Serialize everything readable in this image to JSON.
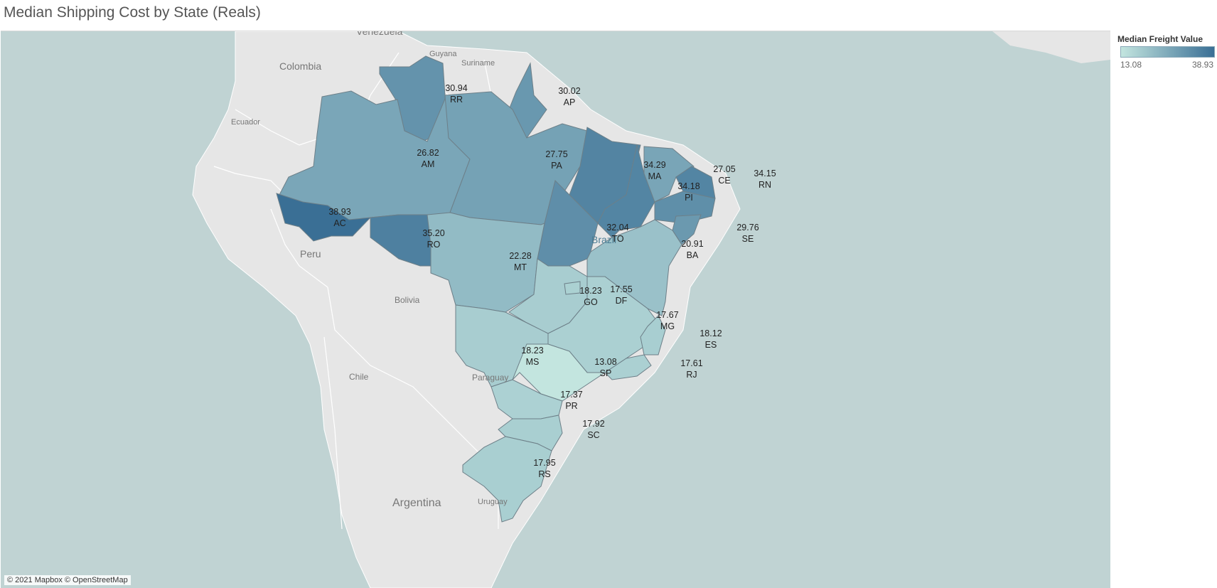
{
  "title": "Median Shipping Cost by State (Reals)",
  "legend": {
    "title": "Median Freight Value",
    "min_label": "13.08",
    "max_label": "38.93",
    "color_min": "#c3e5df",
    "color_max": "#3a6f95"
  },
  "attribution": "© 2021 Mapbox © OpenStreetMap",
  "countries": {
    "venezuela": "Venezuela",
    "guyana": "Guyana",
    "suriname": "Suriname",
    "colombia": "Colombia",
    "ecuador": "Ecuador",
    "peru": "Peru",
    "bolivia": "Bolivia",
    "brazil": "Brazil",
    "chile": "Chile",
    "paraguay": "Paraguay",
    "argentina": "Argentina",
    "uruguay": "Uruguay"
  },
  "chart_data": {
    "type": "choropleth",
    "title": "Median Shipping Cost by State (Reals)",
    "value_label": "Median Freight Value",
    "color_range": [
      13.08,
      38.93
    ],
    "regions": [
      {
        "code": "RR",
        "value": "30.94"
      },
      {
        "code": "AP",
        "value": "30.02"
      },
      {
        "code": "AM",
        "value": "26.82"
      },
      {
        "code": "PA",
        "value": "27.75"
      },
      {
        "code": "MA",
        "value": "34.29"
      },
      {
        "code": "CE",
        "value": "27.05"
      },
      {
        "code": "RN",
        "value": "34.15"
      },
      {
        "code": "PI",
        "value": "34.18"
      },
      {
        "code": "AC",
        "value": "38.93"
      },
      {
        "code": "RO",
        "value": "35.20"
      },
      {
        "code": "TO",
        "value": "32.04"
      },
      {
        "code": "SE",
        "value": "29.76"
      },
      {
        "code": "BA",
        "value": "20.91"
      },
      {
        "code": "MT",
        "value": "22.28"
      },
      {
        "code": "GO",
        "value": "18.23"
      },
      {
        "code": "DF",
        "value": "17.55"
      },
      {
        "code": "MG",
        "value": "17.67"
      },
      {
        "code": "ES",
        "value": "18.12"
      },
      {
        "code": "MS",
        "value": "18.23"
      },
      {
        "code": "SP",
        "value": "13.08"
      },
      {
        "code": "RJ",
        "value": "17.61"
      },
      {
        "code": "PR",
        "value": "17.37"
      },
      {
        "code": "SC",
        "value": "17.92"
      },
      {
        "code": "RS",
        "value": "17.95"
      }
    ]
  }
}
